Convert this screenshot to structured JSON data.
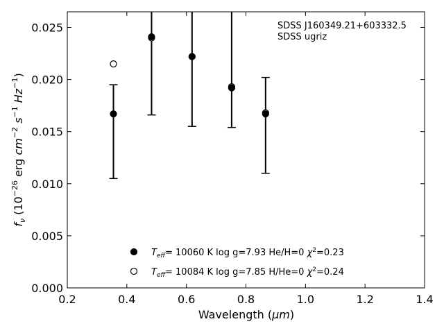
{
  "chart_data": {
    "type": "scatter",
    "annotation": [
      "SDSS J160349.21+603332.5",
      "SDSS ugriz"
    ],
    "xlabel": "Wavelength (μm)",
    "ylabel": "fν (10⁻²⁶ erg cm⁻² s⁻¹ Hz⁻¹)",
    "xlim": [
      0.2,
      1.4
    ],
    "ylim": [
      0.0,
      0.0265
    ],
    "xticks": [
      "0.2",
      "0.4",
      "0.6",
      "0.8",
      "1.0",
      "1.2",
      "1.4"
    ],
    "yticks": [
      "0.000",
      "0.005",
      "0.010",
      "0.015",
      "0.020",
      "0.025"
    ],
    "grid": false,
    "legend_placement": "lower-center",
    "observed": {
      "x": [
        0.355,
        0.483,
        0.619,
        0.752,
        0.866
      ],
      "y": [
        0.0167,
        0.0241,
        0.0222,
        0.0193,
        0.0167
      ],
      "yerr_low": [
        0.0105,
        0.0166,
        0.0155,
        0.0154,
        0.011
      ],
      "yerr_high": [
        0.0195,
        0.029,
        0.029,
        0.029,
        0.0202
      ]
    },
    "series": [
      {
        "name": "T_eff= 10060 K  log g=7.93  He/H=0  χ²=0.23",
        "marker": "filled-circle",
        "x": [
          0.355,
          0.483,
          0.619,
          0.752,
          0.866
        ],
        "y": [
          0.0167,
          0.0241,
          0.0222,
          0.0192,
          0.0167
        ]
      },
      {
        "name": "T_eff= 10084 K  log g=7.85  H/He=0  χ²=0.24",
        "marker": "open-circle",
        "x": [
          0.355,
          0.483,
          0.619,
          0.752,
          0.866
        ],
        "y": [
          0.0215,
          0.024,
          0.0222,
          0.0193,
          0.0168
        ]
      }
    ],
    "legend": [
      {
        "marker": "filled-circle",
        "teff_value": "= 10060 K  log g=7.93  He/H=0  ",
        "chi_value": "=0.23"
      },
      {
        "marker": "open-circle",
        "teff_value": "= 10084 K  log g=7.85  H/He=0  ",
        "chi_value": "=0.24"
      }
    ],
    "colors": {
      "axes": "#000000",
      "markers": "#000000",
      "background": "#ffffff"
    }
  }
}
